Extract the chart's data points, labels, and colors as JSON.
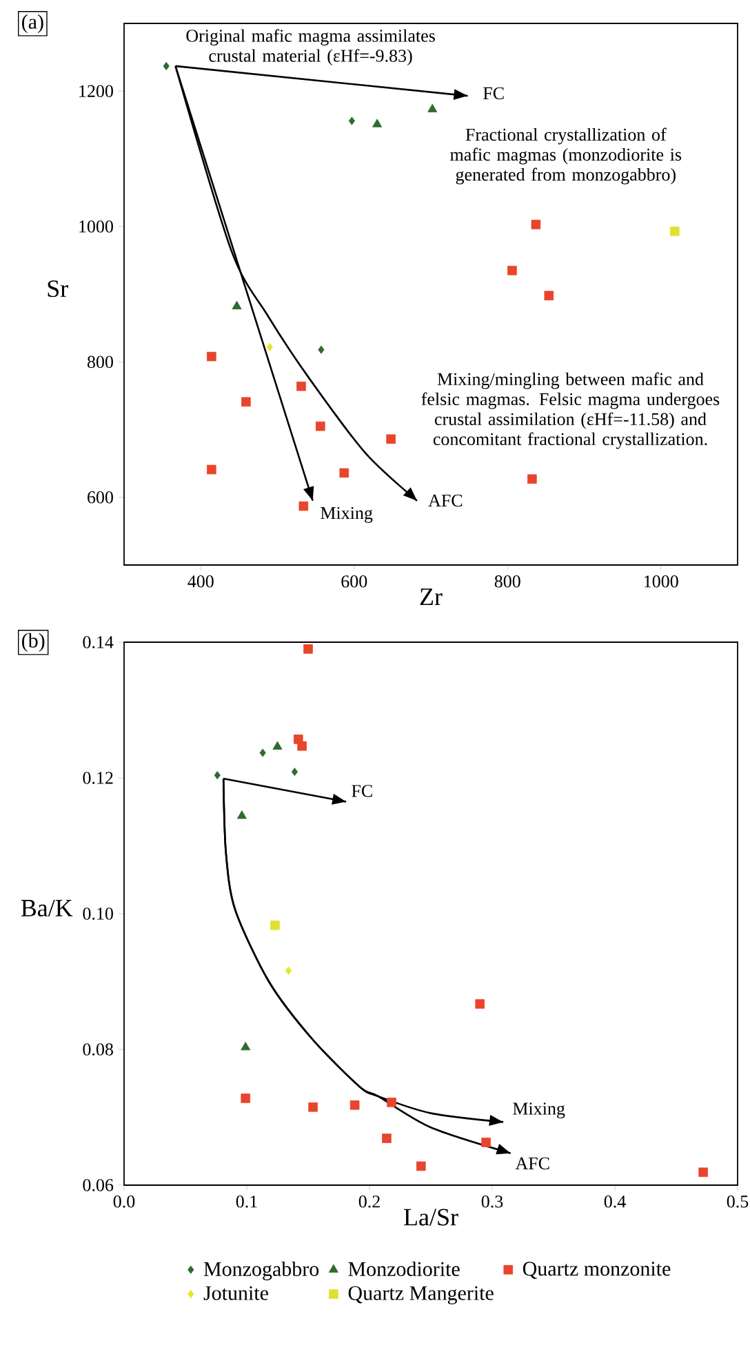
{
  "chart_data": [
    {
      "type": "scatter",
      "title": "(a)",
      "xlabel": "Zr",
      "ylabel": "Sr",
      "xlim": [
        300,
        1100
      ],
      "ylim": [
        500,
        1300
      ],
      "xticks": [
        400,
        600,
        800,
        1000
      ],
      "yticks": [
        600,
        800,
        1000,
        1200
      ],
      "series": [
        {
          "color": "#2e6b2e",
          "marker": "diamond",
          "x": [
            355,
            597,
            557
          ],
          "values": [
            1237,
            1156,
            818
          ]
        },
        {
          "color": "#2e6b2e",
          "marker": "triangle",
          "x": [
            630,
            702,
            447
          ],
          "values": [
            1151,
            1173,
            882
          ]
        },
        {
          "color": "#e8452c",
          "marker": "square",
          "x": [
            837,
            806,
            854,
            414,
            459,
            531,
            556,
            648,
            414,
            587,
            832,
            534
          ],
          "values": [
            1003,
            935,
            898,
            808,
            741,
            764,
            705,
            686,
            641,
            636,
            627,
            587
          ]
        },
        {
          "color": "#e6e62a",
          "marker": "diamond",
          "x": [
            490
          ],
          "values": [
            822
          ]
        },
        {
          "color": "#e0e030",
          "marker": "square",
          "x": [
            1018
          ],
          "values": [
            993
          ]
        },
        {
          "type": "line",
          "color": "#000000",
          "marker": "none",
          "line_style": "solid",
          "x": [
            367,
            748
          ],
          "values": [
            1237,
            1193
          ]
        },
        {
          "type": "line",
          "color": "#000000",
          "marker": "none",
          "line_style": "solid",
          "x": [
            367,
            546
          ],
          "values": [
            1237,
            595
          ]
        },
        {
          "type": "line",
          "color": "#000000",
          "marker": "none",
          "line_style": "solid",
          "x": [
            367,
            440,
            487,
            540,
            615,
            682
          ],
          "values": [
            1237,
            964,
            869,
            778,
            665,
            595
          ]
        }
      ],
      "annotations": [
        "Original mafic magma assimilates crustal material (εHf=-9.83)",
        "FC",
        "Fractional crystallization  of mafic magmas (monzodiorite is generated from monzogabbro)",
        "Mixing/mingling between mafic and felsic magmas. Felsic magma undergoes crustal assimilation (εHf=-11.58) and concomitant fractional crystallization.",
        "Mixing",
        "AFC"
      ]
    },
    {
      "type": "scatter",
      "title": "(b)",
      "xlabel": "La/Sr",
      "ylabel": "Ba/K",
      "xlim": [
        0,
        0.5
      ],
      "ylim": [
        0.06,
        0.14
      ],
      "xticks": [
        {
          "value": 0,
          "label": "0.0"
        },
        0.1,
        0.2,
        0.3,
        0.4,
        0.5
      ],
      "yticks": [
        0.06,
        0.08,
        {
          "value": 0.1,
          "label": "0.10"
        },
        0.12,
        0.14
      ],
      "legend": "bottom",
      "series": [
        {
          "name": "Monzogabbro",
          "color": "#2e6b2e",
          "marker": "diamond",
          "x": [
            0.076,
            0.113,
            0.139
          ],
          "values": [
            0.1204,
            0.1237,
            0.1209
          ]
        },
        {
          "name": "Monzodiorite",
          "color": "#2e6b2e",
          "marker": "triangle",
          "x": [
            0.125,
            0.096,
            0.099
          ],
          "values": [
            0.1246,
            0.1144,
            0.0803
          ]
        },
        {
          "name": "Quartz monzonite",
          "color": "#e8452c",
          "marker": "square",
          "x": [
            0.142,
            0.145,
            0.15,
            0.29,
            0.099,
            0.154,
            0.188,
            0.218,
            0.214,
            0.242,
            0.295,
            0.472
          ],
          "values": [
            0.1257,
            0.1247,
            0.139,
            0.0867,
            0.0728,
            0.0715,
            0.0718,
            0.0722,
            0.0669,
            0.0628,
            0.0663,
            0.0619
          ]
        },
        {
          "name": "Jotunite",
          "color": "#e6e62a",
          "marker": "diamond",
          "x": [
            0.134
          ],
          "values": [
            0.0916
          ]
        },
        {
          "name": "Quartz Mangerite",
          "color": "#e0e030",
          "marker": "square",
          "x": [
            0.123
          ],
          "values": [
            0.0983
          ]
        },
        {
          "type": "line",
          "color": "#000000",
          "marker": "none",
          "line_style": "solid",
          "x": [
            0.081,
            0.181
          ],
          "values": [
            0.1199,
            0.1165
          ]
        },
        {
          "type": "line",
          "color": "#000000",
          "marker": "none",
          "line_style": "solid",
          "x": [
            0.081,
            0.083,
            0.0905,
            0.118,
            0.153,
            0.192,
            0.207,
            0.25,
            0.309
          ],
          "values": [
            0.1199,
            0.109,
            0.1006,
            0.09,
            0.0816,
            0.0745,
            0.0731,
            0.0706,
            0.0693
          ]
        },
        {
          "type": "line",
          "color": "#000000",
          "marker": "none",
          "line_style": "solid",
          "x": [
            0.081,
            0.083,
            0.0905,
            0.118,
            0.153,
            0.192,
            0.207,
            0.25,
            0.315
          ],
          "values": [
            0.1199,
            0.109,
            0.1006,
            0.09,
            0.0816,
            0.0745,
            0.0731,
            0.0685,
            0.0647
          ]
        }
      ],
      "annotations": [
        "FC",
        "Mixing",
        "AFC"
      ]
    }
  ]
}
